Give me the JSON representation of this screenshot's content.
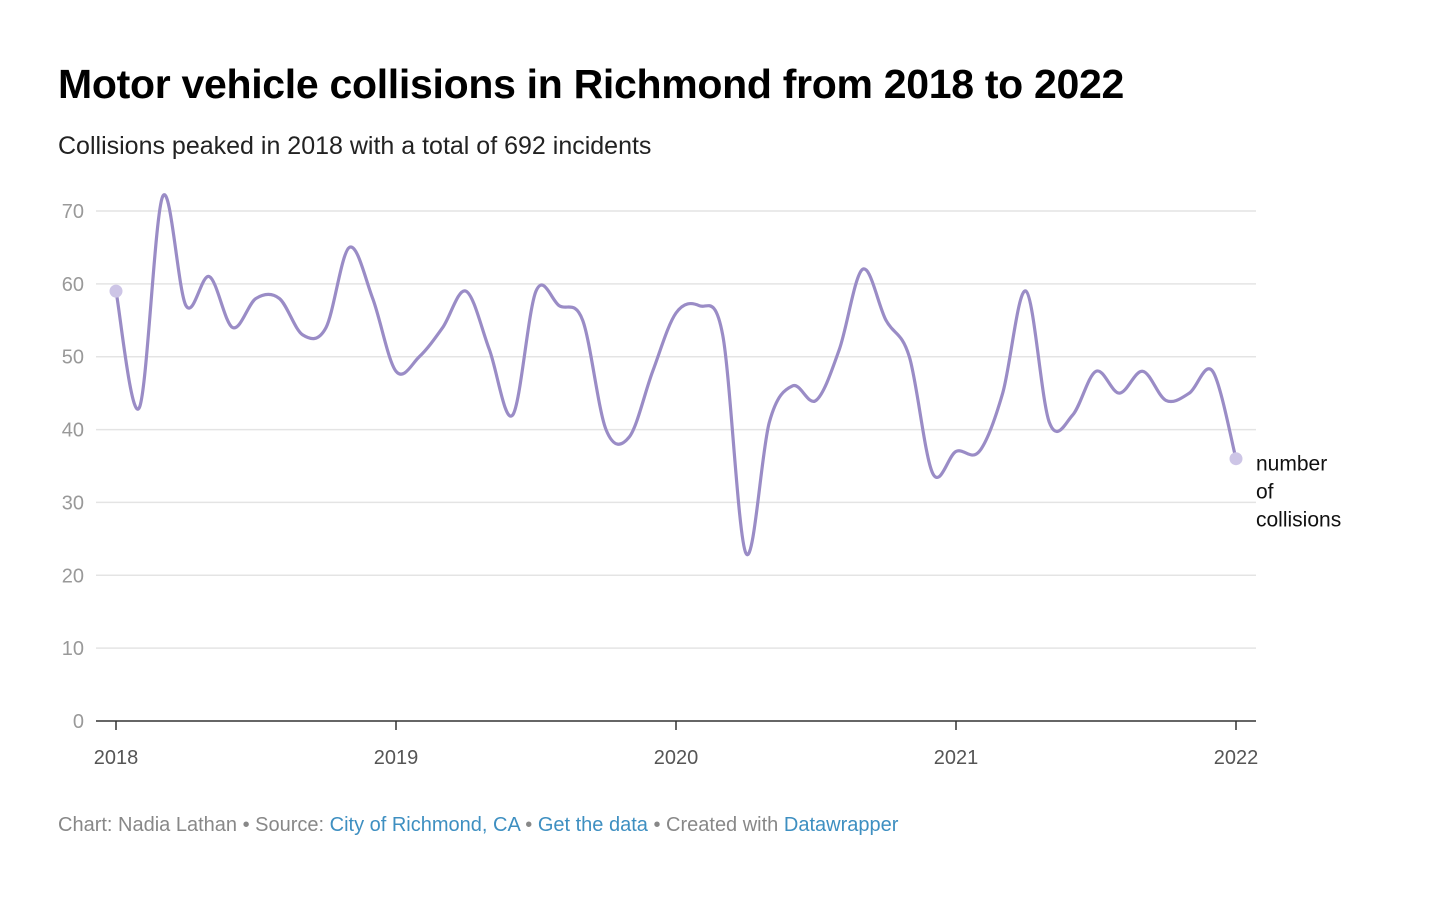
{
  "title": "Motor vehicle collisions in Richmond from 2018 to 2022",
  "subtitle": "Collisions peaked in 2018 with a total of 692 incidents",
  "footer": {
    "chart_label": "Chart: Nadia Lathan",
    "separator": " • ",
    "source_prefix": "Source: ",
    "source_link": "City of Richmond, CA",
    "get_data_link": "Get the data",
    "created_prefix": "Created with ",
    "datawrapper_link": "Datawrapper"
  },
  "colors": {
    "line": "#9a8cc6",
    "endpoint": "#cdc5e6",
    "grid": "#e4e4e4",
    "axis": "#333333",
    "tick_label": "#999999",
    "link": "#3e8fc1"
  },
  "chart_data": {
    "type": "line",
    "title": "Motor vehicle collisions in Richmond from 2018 to 2022",
    "subtitle": "Collisions peaked in 2018 with a total of 692 incidents",
    "xlabel": "",
    "ylabel": "",
    "xlim": [
      2018,
      2022
    ],
    "ylim": [
      0,
      70
    ],
    "x_ticks": [
      "2018",
      "2019",
      "2020",
      "2021",
      "2022"
    ],
    "y_ticks": [
      "0",
      "10",
      "20",
      "30",
      "40",
      "50",
      "60",
      "70"
    ],
    "grid": true,
    "series": [
      {
        "name": "number of collisions",
        "label_lines": [
          "number",
          "of",
          "collisions"
        ],
        "x": [
          2018.0,
          2018.0833,
          2018.1667,
          2018.25,
          2018.3333,
          2018.4167,
          2018.5,
          2018.5833,
          2018.6667,
          2018.75,
          2018.8333,
          2018.9167,
          2019.0,
          2019.0833,
          2019.1667,
          2019.25,
          2019.3333,
          2019.4167,
          2019.5,
          2019.5833,
          2019.6667,
          2019.75,
          2019.8333,
          2019.9167,
          2020.0,
          2020.0833,
          2020.1667,
          2020.25,
          2020.3333,
          2020.4167,
          2020.5,
          2020.5833,
          2020.6667,
          2020.75,
          2020.8333,
          2020.9167,
          2021.0,
          2021.0833,
          2021.1667,
          2021.25,
          2021.3333,
          2021.4167,
          2021.5,
          2021.5833,
          2021.6667,
          2021.75,
          2021.8333,
          2021.9167,
          2022.0
        ],
        "values": [
          59,
          43,
          72,
          57,
          61,
          54,
          58,
          58,
          53,
          54,
          65,
          58,
          48,
          50,
          54,
          59,
          51,
          42,
          59,
          57,
          55,
          40,
          39,
          48,
          56,
          57,
          53,
          23,
          41,
          46,
          44,
          51,
          62,
          55,
          50,
          34,
          37,
          37,
          45,
          59,
          41,
          42,
          48,
          45,
          48,
          44,
          45,
          48,
          36
        ]
      }
    ]
  }
}
